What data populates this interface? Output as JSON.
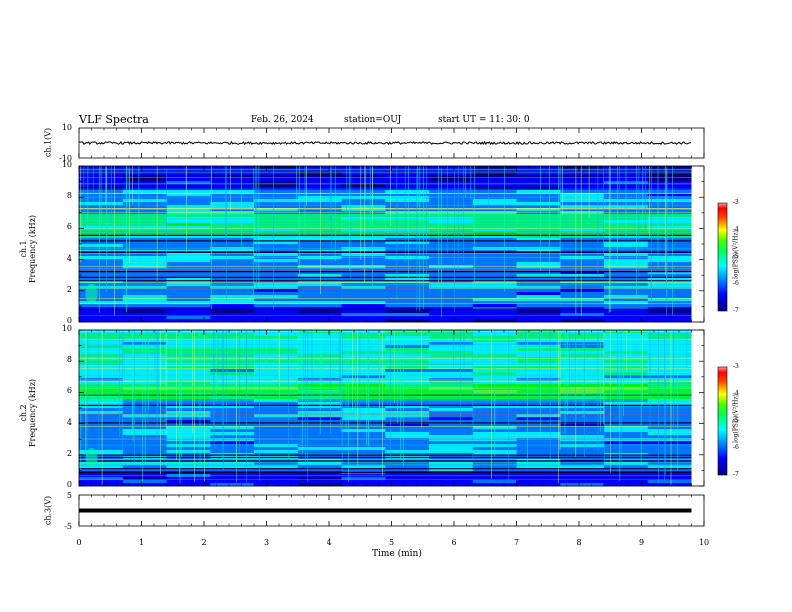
{
  "header": {
    "title": "VLF Spectra",
    "date": "Feb. 26, 2024",
    "station": "station=OUJ",
    "start": "start  UT =   11: 30: 0"
  },
  "chart_data": [
    {
      "type": "line",
      "name": "ch1-waveform",
      "ylabel": "ch.1(V)",
      "ylim": [
        -10,
        10
      ],
      "yticks": [
        "10",
        "-10"
      ],
      "mean": 0
    },
    {
      "type": "heatmap",
      "name": "ch1-spectrogram",
      "ylabel": [
        "ch.1",
        "Frequency  (kHz)"
      ],
      "ylim": [
        0,
        10
      ],
      "yticks": [
        "0",
        "2",
        "4",
        "6",
        "8",
        "10"
      ],
      "colorbar": {
        "label": "log(PSD)(V²/Hz)",
        "range": [
          -7,
          -3
        ],
        "ticks": [
          "-3",
          "-4",
          "-5",
          "-6",
          "-7"
        ]
      }
    },
    {
      "type": "heatmap",
      "name": "ch2-spectrogram",
      "ylabel": [
        "ch.2",
        "Frequency  (kHz)"
      ],
      "ylim": [
        0,
        10
      ],
      "yticks": [
        "0",
        "2",
        "4",
        "6",
        "8",
        "10"
      ],
      "colorbar": {
        "label": "log(PSD)(V²/Hz)",
        "range": [
          -7,
          -3
        ],
        "ticks": [
          "-3",
          "-4",
          "-5",
          "-6",
          "-7"
        ]
      }
    },
    {
      "type": "line",
      "name": "ch3-waveform",
      "ylabel": "ch.3(V)",
      "ylim": [
        -5,
        5
      ],
      "yticks": [
        "5",
        "-5"
      ],
      "mean": 0
    }
  ],
  "xaxis": {
    "label": "Time  (min)",
    "range": [
      0,
      10
    ],
    "data_end": 9.8,
    "ticks": [
      "0",
      "1",
      "2",
      "3",
      "4",
      "5",
      "6",
      "7",
      "8",
      "9",
      "10"
    ]
  },
  "colors": {
    "colormap": [
      "#000080",
      "#0000ff",
      "#0080ff",
      "#00ffff",
      "#00ff80",
      "#00ff00",
      "#80ff00",
      "#ffff00",
      "#ff8000",
      "#ff0000",
      "#ff8080"
    ]
  }
}
